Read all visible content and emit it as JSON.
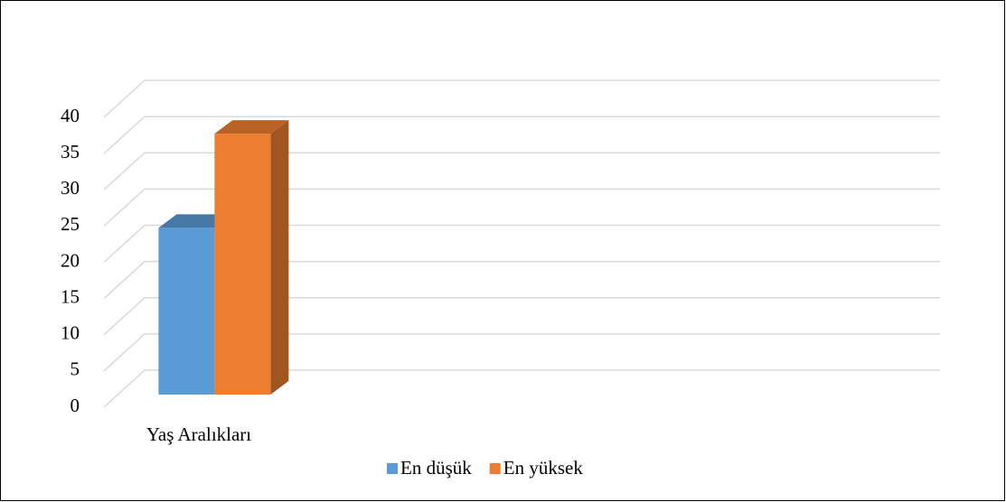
{
  "chart_data": {
    "type": "bar3d",
    "categories": [
      "Yaş Aralıkları"
    ],
    "series": [
      {
        "name": "En düşük",
        "color": "#5b9bd5",
        "values": [
          23
        ]
      },
      {
        "name": "En yüksek",
        "color": "#ed7d31",
        "values": [
          36
        ]
      }
    ],
    "ylim": [
      0,
      40
    ],
    "yticks": [
      0,
      5,
      10,
      15,
      20,
      25,
      30,
      35,
      40
    ],
    "grid": true,
    "legend": "bottom"
  }
}
